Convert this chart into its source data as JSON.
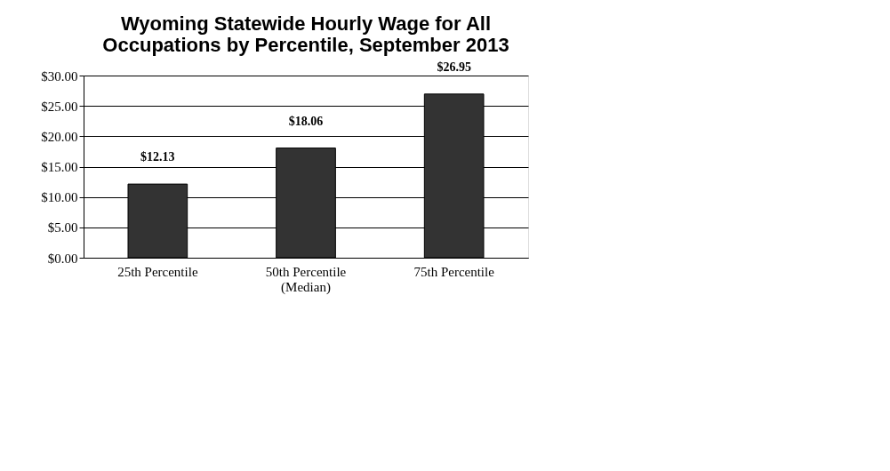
{
  "chart_data": {
    "type": "bar",
    "title": "Wyoming Statewide Hourly Wage for All\nOccupations by Percentile, September 2013",
    "categories": [
      "25th Percentile",
      "50th Percentile\n(Median)",
      "75th Percentile"
    ],
    "values": [
      12.13,
      18.06,
      26.95
    ],
    "value_labels": [
      "$12.13",
      "$18.06",
      "$26.95"
    ],
    "color": "#333333",
    "ylim": [
      0,
      30
    ],
    "yticks": [
      {
        "value": 0,
        "label": "$0.00"
      },
      {
        "value": 5,
        "label": "$5.00"
      },
      {
        "value": 10,
        "label": "$10.00"
      },
      {
        "value": 15,
        "label": "$15.00"
      },
      {
        "value": 20,
        "label": "$20.00"
      },
      {
        "value": 25,
        "label": "$25.00"
      },
      {
        "value": 30,
        "label": "$30.00"
      }
    ],
    "grid": "y"
  }
}
